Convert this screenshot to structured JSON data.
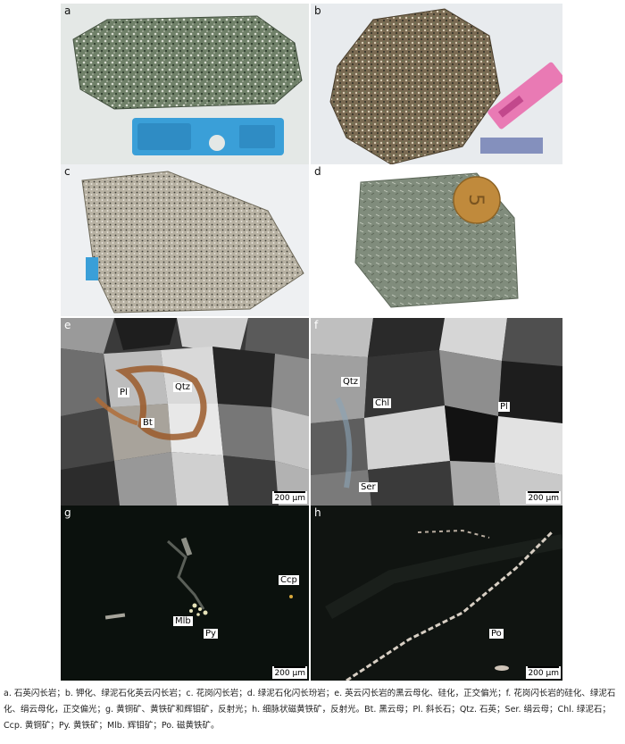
{
  "panels": {
    "a": {
      "label": "a"
    },
    "b": {
      "label": "b"
    },
    "c": {
      "label": "c"
    },
    "d": {
      "label": "d"
    },
    "e": {
      "label": "e",
      "minerals": {
        "pl": "Pl",
        "qtz": "Qtz",
        "bt": "Bt"
      },
      "scale": "200 μm"
    },
    "f": {
      "label": "f",
      "minerals": {
        "qtz": "Qtz",
        "chl": "Chl",
        "pl": "Pl",
        "ser": "Ser"
      },
      "scale": "200 μm"
    },
    "g": {
      "label": "g",
      "minerals": {
        "ccp": "Ccp",
        "mlb": "Mlb",
        "py": "Py"
      },
      "scale": "200 μm"
    },
    "h": {
      "label": "h",
      "minerals": {
        "po": "Po"
      },
      "scale": "200 μm"
    }
  },
  "coin_text": "5",
  "caption": "a. 石英闪长岩；b. 钾化、绿泥石化英云闪长岩；c. 花岗闪长岩；d. 绿泥石化闪长玢岩；e. 英云闪长岩的黑云母化、硅化，正交偏光；f. 花岗闪长岩的硅化、绿泥石化、绢云母化，正交偏光；g. 黄铜矿、黄铁矿和辉钼矿，反射光；h. 细脉状磁黄铁矿，反射光。Bt. 黑云母；Pl. 斜长石；Qtz. 石英；Ser. 绢云母；Chl. 绿泥石；Ccp. 黄铜矿；Py. 黄铁矿；Mlb. 辉钼矿；Po. 磁黄铁矿。",
  "colors": {
    "rock_green": "#5f7258",
    "rock_gray": "#b9b4a6",
    "rock_brown": "#6e5e48",
    "rock_andesite": "#7f8b7c",
    "tag_blue": "#3a9fd8",
    "tag_pink": "#e97ab4",
    "coin": "#c08a3c"
  }
}
